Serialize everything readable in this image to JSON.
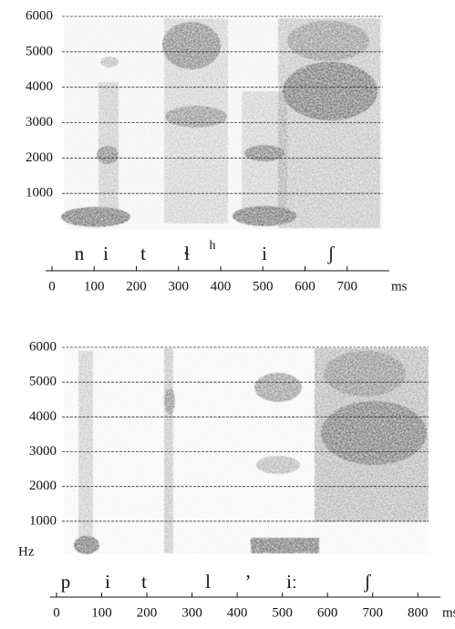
{
  "charts": [
    {
      "type": "spectrogram",
      "segments": [
        "n",
        "i",
        "t",
        "ɬ",
        "h",
        "i",
        "ʃ"
      ],
      "xticks": [
        0,
        100,
        200,
        300,
        400,
        500,
        600,
        700
      ],
      "xlim": [
        0,
        800
      ],
      "x_label": "ms",
      "ylim": [
        0,
        6000
      ],
      "yticks": [
        1000,
        2000,
        3000,
        4000,
        5000,
        6000
      ],
      "grid": true
    },
    {
      "type": "spectrogram",
      "segments": [
        "p",
        "i",
        "t",
        "l",
        "ʼ",
        "iː",
        "ʃ"
      ],
      "xticks": [
        0,
        100,
        200,
        300,
        400,
        500,
        600,
        700,
        800
      ],
      "xlim": [
        0,
        850
      ],
      "x_label": "ms",
      "ylim": [
        0,
        6000
      ],
      "yticks": [
        1000,
        2000,
        3000,
        4000,
        5000,
        6000
      ],
      "y_label": "Hz",
      "grid": true
    }
  ]
}
